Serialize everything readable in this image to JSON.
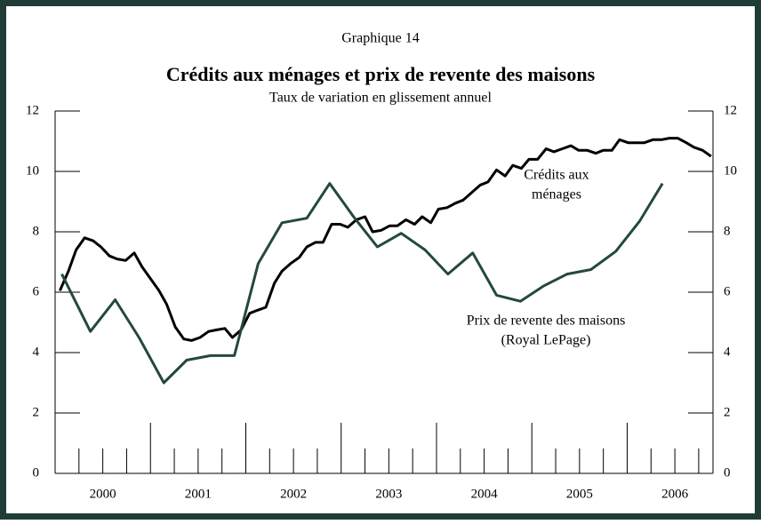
{
  "chart_data": {
    "type": "line",
    "title": "Crédits aux ménages et prix de revente des maisons",
    "subtitle": "Taux de variation en glissement annuel",
    "label": "Graphique 14",
    "annotations": [
      {
        "lines": [
          "Crédits aux",
          "ménages"
        ]
      },
      {
        "lines": [
          "Prix de revente des maisons",
          "(Royal LePage)"
        ]
      }
    ],
    "xlim": [
      2000,
      2006.9
    ],
    "xticks": [
      {
        "value": 2000.5,
        "label": "2000"
      },
      {
        "value": 2001.5,
        "label": "2001"
      },
      {
        "value": 2002.5,
        "label": "2002"
      },
      {
        "value": 2003.5,
        "label": "2003"
      },
      {
        "value": 2004.5,
        "label": "2004"
      },
      {
        "value": 2005.5,
        "label": "2005"
      },
      {
        "value": 2006.5,
        "label": "2006"
      }
    ],
    "xminor_ticks": [
      2000.25,
      2000.5,
      2000.75,
      2001,
      2001.25,
      2001.5,
      2001.75,
      2002,
      2002.25,
      2002.5,
      2002.75,
      2003,
      2003.25,
      2003.5,
      2003.75,
      2004,
      2004.25,
      2004.5,
      2004.75,
      2005,
      2005.25,
      2005.5,
      2005.75,
      2006,
      2006.25,
      2006.5,
      2006.75
    ],
    "ylim": [
      0,
      12
    ],
    "yticks": [
      0,
      2,
      4,
      6,
      8,
      10,
      12
    ],
    "y2lim": [
      0,
      12
    ],
    "y2ticks": [
      0,
      2,
      4,
      6,
      8,
      10,
      12
    ],
    "series": [
      {
        "name": "Crédits aux ménages",
        "color": "#000000",
        "x": [
          2000.05,
          2000.14,
          2000.22,
          2000.31,
          2000.4,
          2000.48,
          2000.57,
          2000.65,
          2000.74,
          2000.83,
          2000.91,
          2001.0,
          2001.09,
          2001.17,
          2001.26,
          2001.35,
          2001.43,
          2001.52,
          2001.61,
          2001.69,
          2001.78,
          2001.86,
          2001.95,
          2002.04,
          2002.12,
          2002.21,
          2002.3,
          2002.38,
          2002.47,
          2002.56,
          2002.64,
          2002.73,
          2002.81,
          2002.9,
          2002.99,
          2003.07,
          2003.16,
          2003.25,
          2003.33,
          2003.42,
          2003.51,
          2003.59,
          2003.68,
          2003.77,
          2003.85,
          2003.94,
          2004.02,
          2004.11,
          2004.2,
          2004.28,
          2004.37,
          2004.46,
          2004.54,
          2004.63,
          2004.72,
          2004.8,
          2004.89,
          2004.97,
          2005.06,
          2005.15,
          2005.23,
          2005.32,
          2005.41,
          2005.49,
          2005.58,
          2005.67,
          2005.75,
          2005.84,
          2005.92,
          2006.01,
          2006.1,
          2006.18,
          2006.27,
          2006.36,
          2006.44,
          2006.53,
          2006.62,
          2006.7,
          2006.79,
          2006.88
        ],
        "values": [
          6.05,
          6.7,
          7.4,
          7.8,
          7.7,
          7.5,
          7.2,
          7.1,
          7.05,
          7.3,
          6.85,
          6.45,
          6.05,
          5.6,
          4.85,
          4.45,
          4.4,
          4.5,
          4.7,
          4.75,
          4.8,
          4.5,
          4.75,
          5.3,
          5.4,
          5.5,
          6.3,
          6.7,
          6.95,
          7.15,
          7.5,
          7.65,
          7.65,
          8.25,
          8.25,
          8.15,
          8.4,
          8.5,
          8.0,
          8.05,
          8.2,
          8.2,
          8.4,
          8.25,
          8.5,
          8.3,
          8.75,
          8.8,
          8.95,
          9.05,
          9.3,
          9.55,
          9.65,
          10.05,
          9.85,
          10.2,
          10.1,
          10.4,
          10.4,
          10.75,
          10.65,
          10.75,
          10.85,
          10.7,
          10.7,
          10.6,
          10.7,
          10.7,
          11.05,
          10.95,
          10.95,
          10.95,
          11.05,
          11.05,
          11.1,
          11.1,
          10.95,
          10.8,
          10.7,
          10.5
        ]
      },
      {
        "name": "Prix de revente des maisons (Royal LePage)",
        "color": "#234840",
        "axis": "y2",
        "x": [
          2000.07,
          2000.37,
          2000.63,
          2000.88,
          2001.14,
          2001.38,
          2001.63,
          2001.88,
          2002.13,
          2002.38,
          2002.64,
          2002.88,
          2003.13,
          2003.38,
          2003.63,
          2003.88,
          2004.12,
          2004.38,
          2004.63,
          2004.88,
          2005.12,
          2005.37,
          2005.62,
          2005.88,
          2006.13,
          2006.37
        ],
        "values": [
          6.6,
          4.7,
          5.75,
          4.5,
          3.0,
          3.75,
          3.9,
          3.9,
          6.95,
          8.3,
          8.45,
          9.6,
          8.5,
          7.5,
          7.95,
          7.4,
          6.6,
          7.3,
          5.9,
          5.7,
          6.2,
          6.6,
          6.75,
          7.35,
          8.35,
          9.6
        ]
      }
    ]
  }
}
